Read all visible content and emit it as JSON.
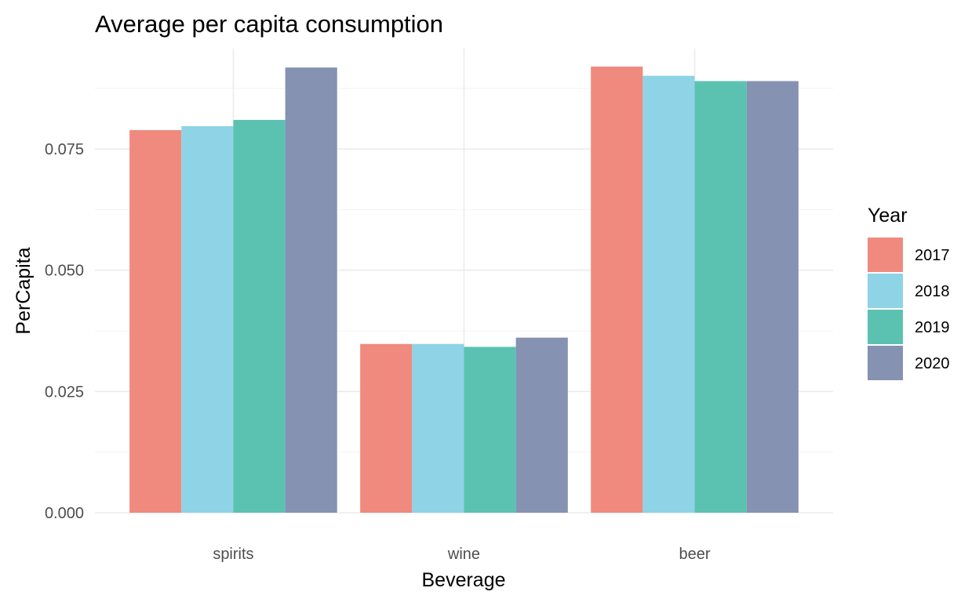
{
  "chart_data": {
    "type": "bar",
    "title": "Average per capita consumption",
    "xlabel": "Beverage",
    "ylabel": "PerCapita",
    "categories": [
      "spirits",
      "wine",
      "beer"
    ],
    "series": [
      {
        "name": "2017",
        "color": "#F08A7E",
        "values": [
          0.0789,
          0.0348,
          0.092
        ]
      },
      {
        "name": "2018",
        "color": "#8FD3E6",
        "values": [
          0.0797,
          0.0348,
          0.0901
        ]
      },
      {
        "name": "2019",
        "color": "#5BC2B2",
        "values": [
          0.081,
          0.0342,
          0.089
        ]
      },
      {
        "name": "2020",
        "color": "#8592B2",
        "values": [
          0.0918,
          0.0361,
          0.089
        ]
      }
    ],
    "yticks": [
      "0.000",
      "0.025",
      "0.050",
      "0.075"
    ],
    "ylim": [
      0,
      0.0957
    ],
    "legend_title": "Year",
    "legend_position": "right",
    "grid": true
  }
}
